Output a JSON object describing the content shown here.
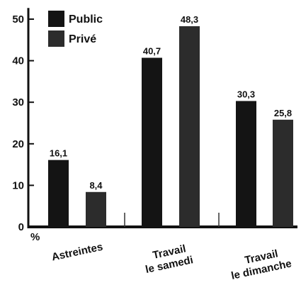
{
  "chart_data": {
    "type": "bar",
    "categories": [
      "Astreintes",
      "Travail le samedi",
      "Travail le dimanche"
    ],
    "category_lines": [
      [
        "Astreintes"
      ],
      [
        "Travail",
        "le samedi"
      ],
      [
        "Travail",
        "le dimanche"
      ]
    ],
    "series": [
      {
        "name": "Public",
        "values": [
          16.1,
          40.7,
          30.3
        ],
        "labels": [
          "16,1",
          "40,7",
          "30,3"
        ],
        "color": "#141414"
      },
      {
        "name": "Privé",
        "values": [
          8.4,
          48.3,
          25.8
        ],
        "labels": [
          "8,4",
          "48,3",
          "25,8"
        ],
        "color": "#2c2c2c"
      }
    ],
    "yticks": [
      0,
      10,
      20,
      30,
      40,
      50
    ],
    "ylim": [
      0,
      52
    ],
    "ylabel": "%",
    "legend_position": "top-left",
    "grid": false
  }
}
